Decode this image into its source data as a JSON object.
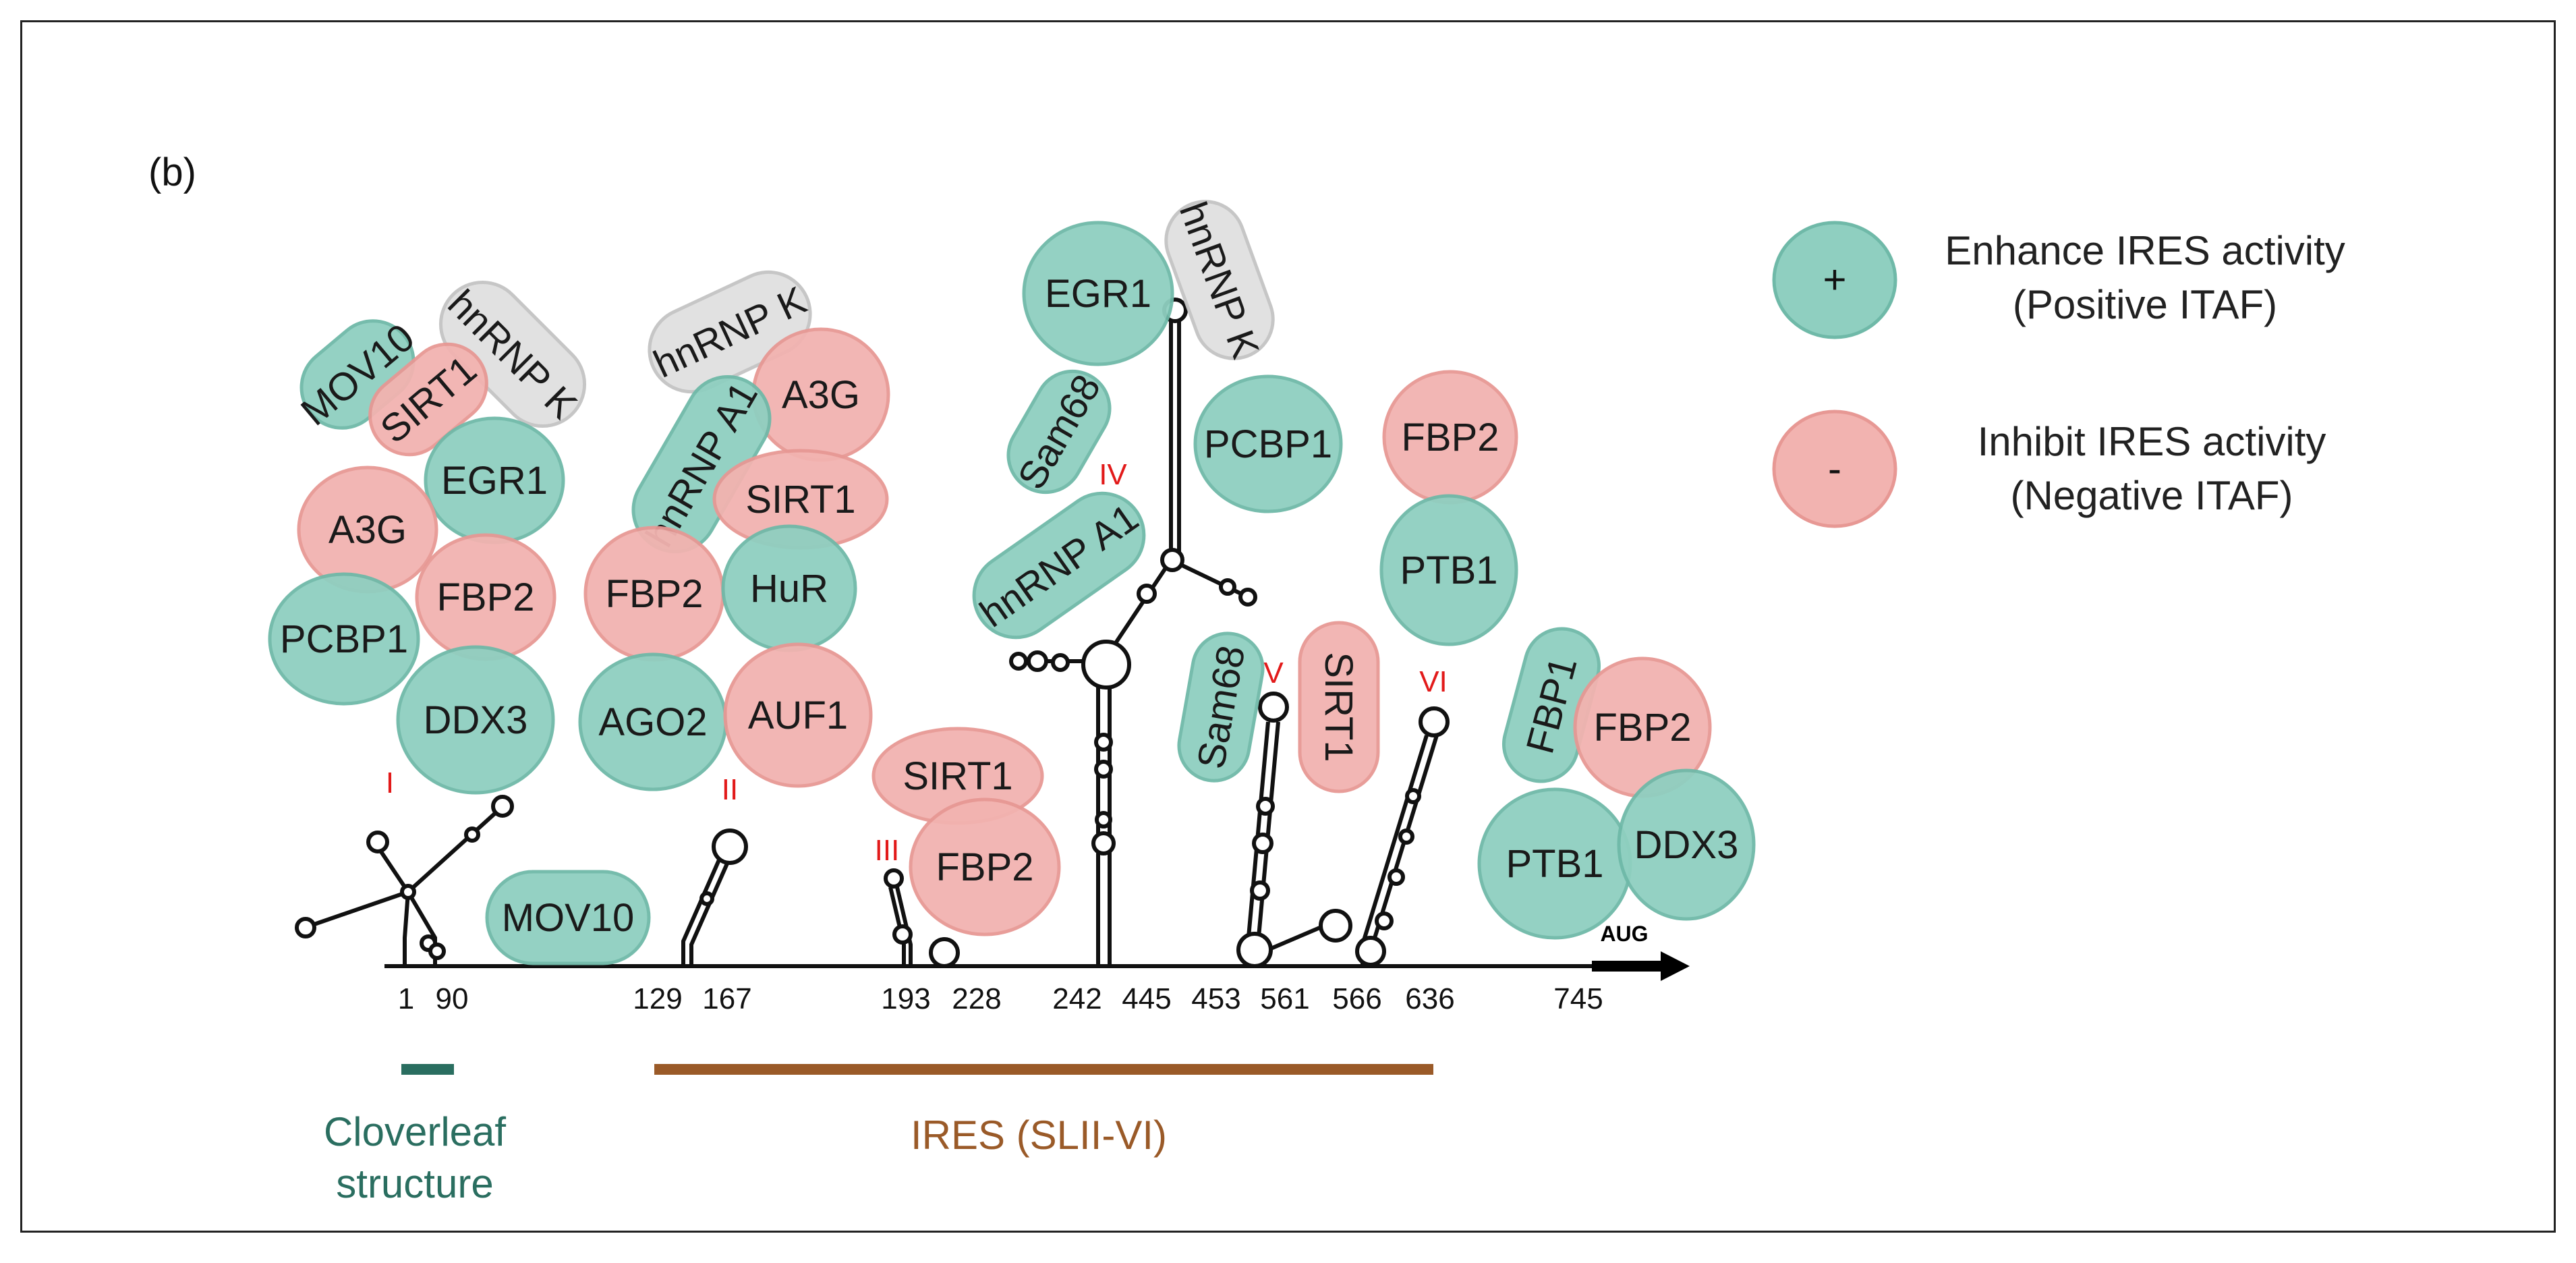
{
  "panel_label": "(b)",
  "colors": {
    "positive": "#8fcfc0",
    "positive_edge": "#6fb9a8",
    "negative": "#f2b3b0",
    "negative_edge": "#e79894",
    "neutral": "#e0e0e0",
    "neutral_edge": "#c4c4c4",
    "roman": "#e21a1a",
    "cloverleaf": "#2a6e60",
    "ires": "#9a5a28"
  },
  "legend": {
    "positive_symbol": "+",
    "positive_line1": "Enhance IRES activity",
    "positive_line2": "(Positive ITAF)",
    "negative_symbol": "-",
    "negative_line1": "Inhibit IRES activity",
    "negative_line2": "(Negative ITAF)"
  },
  "stem_loops": [
    "I",
    "II",
    "III",
    "IV",
    "V",
    "VI"
  ],
  "positions": [
    "1",
    "90",
    "129",
    "167",
    "193",
    "228",
    "242",
    "445",
    "453",
    "561",
    "566",
    "636",
    "745"
  ],
  "start_codon": "AUG",
  "regions": {
    "cloverleaf_line1": "Cloverleaf",
    "cloverleaf_line2": "structure",
    "ires": "IRES (SLII-VI)"
  },
  "proteins": {
    "p1": {
      "label": "MOV10",
      "type": "positive"
    },
    "p2": {
      "label": "hnRNP K",
      "type": "neutral"
    },
    "p3": {
      "label": "SIRT1",
      "type": "negative"
    },
    "p4": {
      "label": "EGR1",
      "type": "positive"
    },
    "p5": {
      "label": "A3G",
      "type": "negative"
    },
    "p6": {
      "label": "FBP2",
      "type": "negative"
    },
    "p7": {
      "label": "PCBP1",
      "type": "positive"
    },
    "p8": {
      "label": "DDX3",
      "type": "positive"
    },
    "p9": {
      "label": "MOV10",
      "type": "positive"
    },
    "p10": {
      "label": "hnRNP K",
      "type": "neutral"
    },
    "p11": {
      "label": "A3G",
      "type": "negative"
    },
    "p12": {
      "label": "hnRNP A1",
      "type": "positive"
    },
    "p13": {
      "label": "SIRT1",
      "type": "negative"
    },
    "p14": {
      "label": "FBP2",
      "type": "negative"
    },
    "p15": {
      "label": "HuR",
      "type": "positive"
    },
    "p16": {
      "label": "AGO2",
      "type": "positive"
    },
    "p17": {
      "label": "AUF1",
      "type": "negative"
    },
    "p18": {
      "label": "SIRT1",
      "type": "negative"
    },
    "p19": {
      "label": "FBP2",
      "type": "negative"
    },
    "p20": {
      "label": "EGR1",
      "type": "positive"
    },
    "p21": {
      "label": "hnRNP K",
      "type": "neutral"
    },
    "p22": {
      "label": "Sam68",
      "type": "positive"
    },
    "p23": {
      "label": "PCBP1",
      "type": "positive"
    },
    "p24": {
      "label": "hnRNP A1",
      "type": "positive"
    },
    "p25": {
      "label": "Sam68",
      "type": "positive"
    },
    "p26": {
      "label": "SIRT1",
      "type": "negative"
    },
    "p27": {
      "label": "FBP2",
      "type": "negative"
    },
    "p28": {
      "label": "PTB1",
      "type": "positive"
    },
    "p29": {
      "label": "FBP1",
      "type": "positive"
    },
    "p30": {
      "label": "FBP2",
      "type": "negative"
    },
    "p31": {
      "label": "PTB1",
      "type": "positive"
    },
    "p32": {
      "label": "DDX3",
      "type": "positive"
    }
  }
}
